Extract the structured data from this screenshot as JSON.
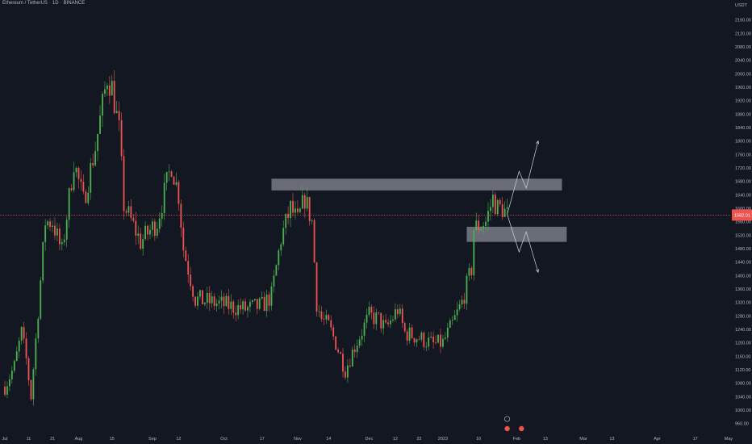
{
  "header": {
    "symbol": "Ethereum / TetherUS",
    "interval": "1D",
    "exchange": "BINANCE"
  },
  "colors": {
    "background": "#131722",
    "up": "#26a69a",
    "up_bright": "#4caf50",
    "down": "#ef5350",
    "zone": "#b2b5be",
    "price_line": "#ef5350",
    "projection": "#d1d4dc"
  },
  "chart_data": {
    "type": "candlestick",
    "y_axis_unit": "USDT",
    "ylim": [
      940,
      2200
    ],
    "y_ticks": [
      960,
      1000,
      1040,
      1080,
      1120,
      1160,
      1200,
      1240,
      1280,
      1320,
      1360,
      1400,
      1440,
      1480,
      1520,
      1560,
      1600,
      1640,
      1680,
      1720,
      1760,
      1800,
      1840,
      1880,
      1920,
      1960,
      2000,
      2040,
      2080,
      2120,
      2160
    ],
    "x_start": "2022-07-01",
    "x_end": "2023-05-01",
    "x_ticks": [
      {
        "date": "2022-07-01",
        "label": "Jul"
      },
      {
        "date": "2022-07-11",
        "label": "11"
      },
      {
        "date": "2022-07-21",
        "label": "21"
      },
      {
        "date": "2022-08-01",
        "label": "Aug"
      },
      {
        "date": "2022-08-15",
        "label": "15"
      },
      {
        "date": "2022-09-01",
        "label": "Sep"
      },
      {
        "date": "2022-09-12",
        "label": "12"
      },
      {
        "date": "2022-10-01",
        "label": "Oct"
      },
      {
        "date": "2022-10-17",
        "label": "17"
      },
      {
        "date": "2022-11-01",
        "label": "Nov"
      },
      {
        "date": "2022-11-14",
        "label": "14"
      },
      {
        "date": "2022-12-01",
        "label": "Dec"
      },
      {
        "date": "2022-12-12",
        "label": "12"
      },
      {
        "date": "2022-12-22",
        "label": "22"
      },
      {
        "date": "2023-01-01",
        "label": "2023"
      },
      {
        "date": "2023-01-16",
        "label": "16"
      },
      {
        "date": "2023-02-01",
        "label": "Feb"
      },
      {
        "date": "2023-02-13",
        "label": "13"
      },
      {
        "date": "2023-03-01",
        "label": "Mar"
      },
      {
        "date": "2023-03-13",
        "label": "13"
      },
      {
        "date": "2023-04-01",
        "label": "Apr"
      },
      {
        "date": "2023-04-17",
        "label": "17"
      },
      {
        "date": "2023-05-01",
        "label": "May"
      }
    ],
    "last_price": 1580,
    "last_price_label": "1582.01",
    "grid": false,
    "price_keypoints": [
      {
        "date": "2022-07-01",
        "price": 1070
      },
      {
        "date": "2022-07-05",
        "price": 1130
      },
      {
        "date": "2022-07-08",
        "price": 1230
      },
      {
        "date": "2022-07-10",
        "price": 1150
      },
      {
        "date": "2022-07-12",
        "price": 1040
      },
      {
        "date": "2022-07-14",
        "price": 1210
      },
      {
        "date": "2022-07-18",
        "price": 1560
      },
      {
        "date": "2022-07-21",
        "price": 1560
      },
      {
        "date": "2022-07-25",
        "price": 1470
      },
      {
        "date": "2022-07-30",
        "price": 1740
      },
      {
        "date": "2022-08-03",
        "price": 1620
      },
      {
        "date": "2022-08-08",
        "price": 1780
      },
      {
        "date": "2022-08-13",
        "price": 1990
      },
      {
        "date": "2022-08-15",
        "price": 1960
      },
      {
        "date": "2022-08-18",
        "price": 1830
      },
      {
        "date": "2022-08-20",
        "price": 1610
      },
      {
        "date": "2022-08-27",
        "price": 1500
      },
      {
        "date": "2022-09-03",
        "price": 1560
      },
      {
        "date": "2022-09-09",
        "price": 1730
      },
      {
        "date": "2022-09-12",
        "price": 1640
      },
      {
        "date": "2022-09-14",
        "price": 1480
      },
      {
        "date": "2022-09-19",
        "price": 1330
      },
      {
        "date": "2022-09-26",
        "price": 1320
      },
      {
        "date": "2022-10-03",
        "price": 1310
      },
      {
        "date": "2022-10-10",
        "price": 1300
      },
      {
        "date": "2022-10-17",
        "price": 1310
      },
      {
        "date": "2022-10-21",
        "price": 1340
      },
      {
        "date": "2022-10-25",
        "price": 1510
      },
      {
        "date": "2022-10-29",
        "price": 1600
      },
      {
        "date": "2022-11-01",
        "price": 1560
      },
      {
        "date": "2022-11-04",
        "price": 1630
      },
      {
        "date": "2022-11-07",
        "price": 1560
      },
      {
        "date": "2022-11-09",
        "price": 1320
      },
      {
        "date": "2022-11-11",
        "price": 1270
      },
      {
        "date": "2022-11-14",
        "price": 1250
      },
      {
        "date": "2022-11-17",
        "price": 1200
      },
      {
        "date": "2022-11-21",
        "price": 1120
      },
      {
        "date": "2022-11-25",
        "price": 1190
      },
      {
        "date": "2022-12-01",
        "price": 1280
      },
      {
        "date": "2022-12-05",
        "price": 1270
      },
      {
        "date": "2022-12-08",
        "price": 1240
      },
      {
        "date": "2022-12-13",
        "price": 1300
      },
      {
        "date": "2022-12-16",
        "price": 1230
      },
      {
        "date": "2022-12-22",
        "price": 1215
      },
      {
        "date": "2022-12-28",
        "price": 1195
      },
      {
        "date": "2023-01-01",
        "price": 1200
      },
      {
        "date": "2023-01-05",
        "price": 1255
      },
      {
        "date": "2023-01-09",
        "price": 1320
      },
      {
        "date": "2023-01-13",
        "price": 1420
      },
      {
        "date": "2023-01-14",
        "price": 1540
      },
      {
        "date": "2023-01-19",
        "price": 1560
      },
      {
        "date": "2023-01-22",
        "price": 1630
      },
      {
        "date": "2023-01-24",
        "price": 1600
      },
      {
        "date": "2023-01-26",
        "price": 1600
      },
      {
        "date": "2023-01-28",
        "price": 1580
      }
    ],
    "zones": [
      {
        "name": "resistance-zone",
        "from_date": "2022-10-21",
        "to_date": "2023-02-20",
        "low": 1653,
        "high": 1688
      },
      {
        "name": "support-zone",
        "from_date": "2023-01-11",
        "to_date": "2023-02-22",
        "low": 1500,
        "high": 1545
      }
    ],
    "projections": [
      {
        "name": "bullish-projection",
        "points": [
          {
            "date": "2023-01-28",
            "price": 1582
          },
          {
            "date": "2023-02-02",
            "price": 1710
          },
          {
            "date": "2023-02-05",
            "price": 1660
          },
          {
            "date": "2023-02-10",
            "price": 1800
          }
        ]
      },
      {
        "name": "bearish-projection",
        "points": [
          {
            "date": "2023-01-28",
            "price": 1582
          },
          {
            "date": "2023-02-02",
            "price": 1470
          },
          {
            "date": "2023-02-05",
            "price": 1530
          },
          {
            "date": "2023-02-10",
            "price": 1410
          }
        ]
      }
    ]
  }
}
